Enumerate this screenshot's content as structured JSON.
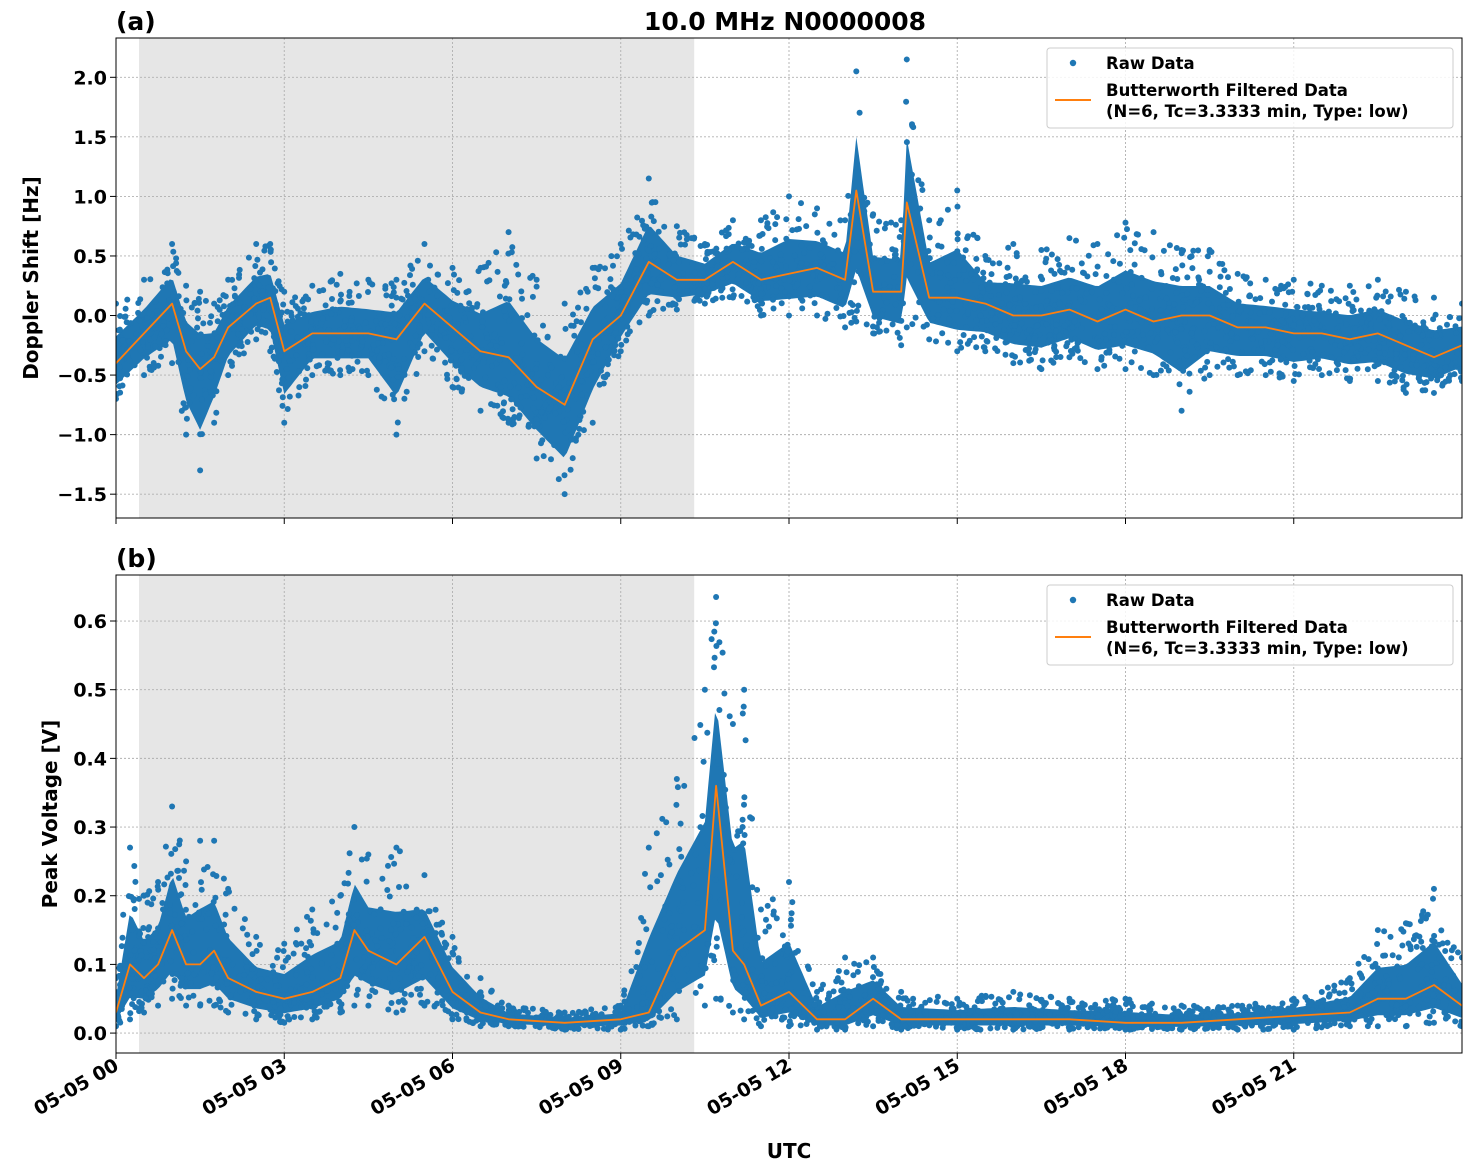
{
  "figure": {
    "title": "10.0 MHz N0000008",
    "xlabel": "UTC",
    "xticks": [
      "05-05 00",
      "05-05 03",
      "05-05 06",
      "05-05 09",
      "05-05 12",
      "05-05 15",
      "05-05 18",
      "05-05 21"
    ],
    "colors": {
      "raw": "#1f77b4",
      "filtered": "#ff7f0e",
      "night_shade": "#e6e6e6",
      "grid": "#b0b0b0"
    }
  },
  "chart_data": [
    {
      "type": "scatter+line",
      "panel_label": "(a)",
      "ylabel": "Doppler Shift [Hz]",
      "xlim_hours_utc": [
        0,
        24
      ],
      "ylim": [
        -1.7,
        2.33
      ],
      "yticks": [
        "2.0",
        "1.5",
        "1.0",
        "0.5",
        "0.0",
        "−0.5",
        "−1.0",
        "−1.5"
      ],
      "ytick_values": [
        2.0,
        1.5,
        1.0,
        0.5,
        0.0,
        -0.5,
        -1.0,
        -1.5
      ],
      "grid": true,
      "shaded_interval_hours_utc": [
        0.41,
        10.31
      ],
      "legend": {
        "placement": "upper right",
        "entries": [
          "Raw Data",
          "Butterworth Filtered Data",
          "(N=6, Tc=3.3333 min, Type: low)"
        ]
      },
      "x_hours_utc": [
        0,
        0.5,
        1.0,
        1.25,
        1.5,
        1.75,
        2.0,
        2.5,
        2.75,
        3.0,
        3.5,
        4.0,
        4.5,
        5.0,
        5.5,
        6.0,
        6.5,
        7.0,
        7.5,
        8.0,
        8.5,
        9.0,
        9.5,
        10.0,
        10.5,
        11.0,
        11.5,
        12.0,
        12.5,
        13.0,
        13.2,
        13.5,
        14.0,
        14.1,
        14.5,
        15.0,
        15.5,
        16.0,
        16.5,
        17.0,
        17.5,
        18.0,
        18.5,
        19.0,
        19.5,
        20.0,
        20.5,
        21.0,
        21.5,
        22.0,
        22.5,
        23.0,
        23.5,
        24
      ],
      "series": [
        {
          "name": "Butterworth Filtered Data",
          "values": [
            -0.4,
            -0.15,
            0.1,
            -0.3,
            -0.45,
            -0.35,
            -0.1,
            0.1,
            0.15,
            -0.3,
            -0.15,
            -0.15,
            -0.15,
            -0.2,
            0.1,
            -0.1,
            -0.3,
            -0.35,
            -0.6,
            -0.75,
            -0.2,
            0.0,
            0.45,
            0.3,
            0.3,
            0.45,
            0.3,
            0.35,
            0.4,
            0.3,
            1.05,
            0.2,
            0.2,
            0.95,
            0.15,
            0.15,
            0.1,
            0.0,
            0.0,
            0.05,
            -0.05,
            0.05,
            -0.05,
            0.0,
            0.0,
            -0.1,
            -0.1,
            -0.15,
            -0.15,
            -0.2,
            -0.15,
            -0.25,
            -0.35,
            -0.25
          ]
        },
        {
          "name": "Raw Data",
          "min": [
            -0.7,
            -0.5,
            -0.4,
            -1.0,
            -1.3,
            -0.9,
            -0.5,
            -0.2,
            -0.3,
            -0.9,
            -0.5,
            -0.5,
            -0.5,
            -1.0,
            -0.3,
            -0.6,
            -0.8,
            -0.9,
            -1.2,
            -1.5,
            -0.9,
            -0.3,
            0.0,
            0.05,
            0.1,
            0.15,
            0.0,
            0.0,
            0.0,
            -0.1,
            -0.05,
            -0.15,
            -0.25,
            -0.1,
            -0.2,
            -0.3,
            -0.3,
            -0.4,
            -0.45,
            -0.35,
            -0.45,
            -0.45,
            -0.5,
            -0.8,
            -0.5,
            -0.5,
            -0.5,
            -0.55,
            -0.5,
            -0.55,
            -0.55,
            -0.65,
            -0.65,
            -0.55
          ],
          "max": [
            0.1,
            0.3,
            0.6,
            0.25,
            0.2,
            0.1,
            0.3,
            0.6,
            0.6,
            0.2,
            0.25,
            0.35,
            0.3,
            0.3,
            0.6,
            0.4,
            0.4,
            0.7,
            0.3,
            0.1,
            0.4,
            0.6,
            1.15,
            0.75,
            0.6,
            0.8,
            0.8,
            1.0,
            0.9,
            0.8,
            2.05,
            0.85,
            0.8,
            2.15,
            0.8,
            1.05,
            0.5,
            0.6,
            0.55,
            0.65,
            0.6,
            0.78,
            0.7,
            0.55,
            0.55,
            0.35,
            0.3,
            0.3,
            0.25,
            0.25,
            0.3,
            0.2,
            0.15,
            0.1
          ]
        }
      ]
    },
    {
      "type": "scatter+line",
      "panel_label": "(b)",
      "ylabel": "Peak Voltage [V]",
      "xlim_hours_utc": [
        0,
        24
      ],
      "ylim": [
        -0.029,
        0.667
      ],
      "yticks": [
        "0.0",
        "0.1",
        "0.2",
        "0.3",
        "0.4",
        "0.5",
        "0.6"
      ],
      "ytick_values": [
        0,
        0.1,
        0.2,
        0.3,
        0.4,
        0.5,
        0.6
      ],
      "grid": true,
      "shaded_interval_hours_utc": [
        0.41,
        10.31
      ],
      "legend": {
        "placement": "upper right",
        "entries": [
          "Raw Data",
          "Butterworth Filtered Data",
          "(N=6, Tc=3.3333 min, Type: low)"
        ]
      },
      "x_hours_utc": [
        0,
        0.25,
        0.5,
        0.75,
        1.0,
        1.25,
        1.5,
        1.75,
        2.0,
        2.5,
        3.0,
        3.5,
        4.0,
        4.25,
        4.5,
        5.0,
        5.5,
        6.0,
        6.5,
        7.0,
        8.0,
        9.0,
        9.5,
        10.0,
        10.5,
        10.7,
        11.0,
        11.2,
        11.5,
        12.0,
        12.5,
        13.0,
        13.5,
        14.0,
        15.0,
        16.0,
        17.0,
        18.0,
        19.0,
        20.0,
        21.0,
        22.0,
        22.5,
        23.0,
        23.5,
        24
      ],
      "series": [
        {
          "name": "Butterworth Filtered Data",
          "values": [
            0.03,
            0.1,
            0.08,
            0.1,
            0.15,
            0.1,
            0.1,
            0.12,
            0.08,
            0.06,
            0.05,
            0.06,
            0.08,
            0.15,
            0.12,
            0.1,
            0.14,
            0.06,
            0.03,
            0.02,
            0.015,
            0.02,
            0.03,
            0.12,
            0.15,
            0.36,
            0.12,
            0.1,
            0.04,
            0.06,
            0.02,
            0.02,
            0.05,
            0.02,
            0.02,
            0.02,
            0.02,
            0.015,
            0.015,
            0.02,
            0.025,
            0.03,
            0.05,
            0.05,
            0.07,
            0.04
          ]
        },
        {
          "name": "Raw Data",
          "min": [
            0.01,
            0.02,
            0.03,
            0.04,
            0.05,
            0.04,
            0.04,
            0.04,
            0.03,
            0.02,
            0.015,
            0.02,
            0.03,
            0.04,
            0.04,
            0.03,
            0.04,
            0.02,
            0.01,
            0.01,
            0.005,
            0.005,
            0.01,
            0.02,
            0.04,
            0.05,
            0.03,
            0.02,
            0.01,
            0.01,
            0.005,
            0.005,
            0.01,
            0.005,
            0.005,
            0.005,
            0.005,
            0.005,
            0.005,
            0.005,
            0.005,
            0.01,
            0.01,
            0.01,
            0.015,
            0.01
          ],
          "max": [
            0.08,
            0.27,
            0.2,
            0.22,
            0.33,
            0.25,
            0.28,
            0.28,
            0.21,
            0.14,
            0.13,
            0.18,
            0.2,
            0.3,
            0.26,
            0.27,
            0.23,
            0.14,
            0.08,
            0.04,
            0.03,
            0.04,
            0.27,
            0.37,
            0.5,
            0.635,
            0.45,
            0.5,
            0.18,
            0.22,
            0.06,
            0.11,
            0.11,
            0.06,
            0.05,
            0.06,
            0.05,
            0.05,
            0.04,
            0.04,
            0.05,
            0.08,
            0.15,
            0.16,
            0.21,
            0.11
          ]
        }
      ]
    }
  ]
}
